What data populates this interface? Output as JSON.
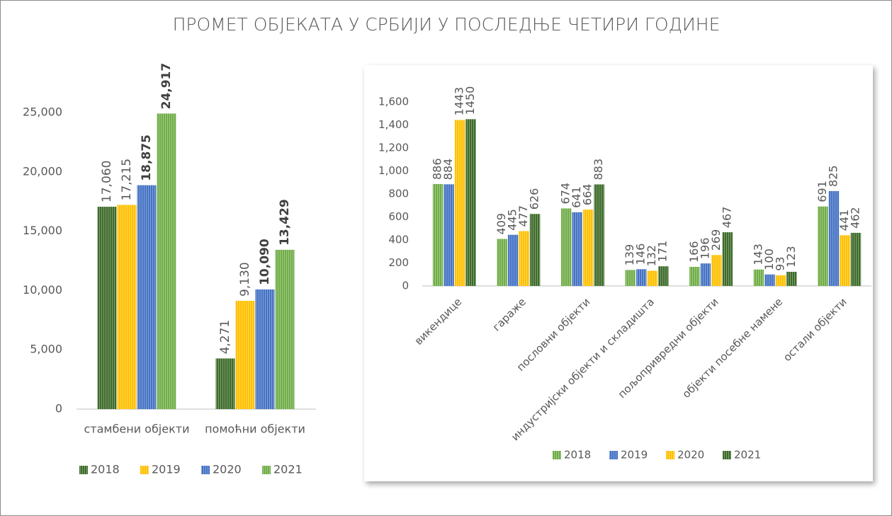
{
  "title": "ПРОМЕТ ОБЈЕКАТА У СРБИЈИ У ПОСЛЕДЊЕ ЧЕТИРИ ГОДИНЕ",
  "chart_data": [
    {
      "type": "bar",
      "categories": [
        "стамбени објекти",
        "помоћни објекти"
      ],
      "series": [
        {
          "name": "2018",
          "color": "#3d6b2a",
          "values": [
            17060,
            4271
          ],
          "value_labels": [
            "17,060",
            "4,271"
          ]
        },
        {
          "name": "2019",
          "color": "#ffc000",
          "values": [
            17215,
            9130
          ],
          "value_labels": [
            "17,215",
            "9,130"
          ]
        },
        {
          "name": "2020",
          "color": "#4472c4",
          "values": [
            18875,
            10090
          ],
          "value_labels": [
            "18,875",
            "10,090"
          ]
        },
        {
          "name": "2021",
          "color": "#70ad47",
          "values": [
            24917,
            13429
          ],
          "value_labels": [
            "24,917",
            "13,429"
          ]
        }
      ],
      "ylim": [
        0,
        25000
      ],
      "yticks": [
        0,
        {
          "value": 5000,
          "label": "5,000"
        },
        {
          "value": 10000,
          "label": "10,000"
        },
        {
          "value": 15000,
          "label": "15,000"
        },
        {
          "value": 20000,
          "label": "20,000"
        },
        {
          "value": 25000,
          "label": "25,000"
        }
      ],
      "legend": "bottom"
    },
    {
      "type": "bar",
      "categories": [
        "викендице",
        "гараже",
        "пословни објекти",
        "индустријски објекти и складишта",
        "пољопривредни објекти",
        "објекти посебне намене",
        "остали објекти"
      ],
      "series": [
        {
          "name": "2018",
          "color": "#70ad47",
          "values": [
            886,
            409,
            674,
            139,
            166,
            143,
            691
          ]
        },
        {
          "name": "2019",
          "color": "#4472c4",
          "values": [
            884,
            445,
            641,
            146,
            196,
            100,
            825
          ]
        },
        {
          "name": "2020",
          "color": "#ffc000",
          "values": [
            1443,
            477,
            664,
            132,
            269,
            93,
            441
          ]
        },
        {
          "name": "2021",
          "color": "#3d6b2a",
          "values": [
            1450,
            626,
            883,
            171,
            467,
            123,
            462
          ]
        }
      ],
      "ylim": [
        0,
        1600
      ],
      "yticks": [
        0,
        200,
        400,
        600,
        800,
        {
          "value": 1000,
          "label": "1,000"
        },
        {
          "value": 1200,
          "label": "1,200"
        },
        {
          "value": 1400,
          "label": "1,400"
        },
        {
          "value": 1600,
          "label": "1,600"
        }
      ],
      "legend": "bottom"
    }
  ]
}
